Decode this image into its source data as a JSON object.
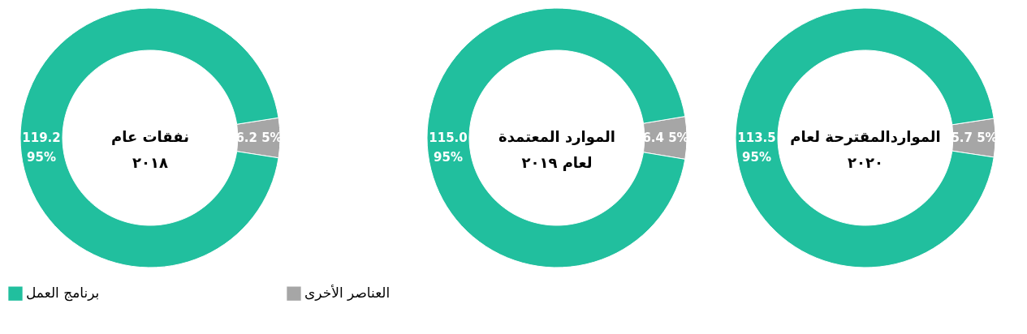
{
  "chart_data": [
    {
      "type": "donut",
      "title": "نفقات عام\n٢٠١٨",
      "categories": [
        "برنامج العمل",
        "العناصر الأخرى"
      ],
      "values": [
        119.2,
        6.2
      ],
      "colors": [
        "#21bf9e",
        "#a6a6a6"
      ],
      "value_labels": [
        "119.2\n95%",
        "6.2  5%"
      ],
      "legend": "bottom"
    },
    {
      "type": "donut",
      "title": "الموارد المعتمدة\nلعام ٢٠١٩",
      "values": [
        115.0,
        6.4
      ],
      "colors": [
        "#21bf9e",
        "#a6a6a6"
      ],
      "value_labels": [
        "115.0\n95%",
        "6.4  5%"
      ]
    },
    {
      "type": "donut",
      "title": "المواردالمقترحة لعام\n٢٠٢٠",
      "values": [
        113.5,
        5.7
      ],
      "colors": [
        "#21bf9e",
        "#a6a6a6"
      ],
      "value_labels": [
        "113.5\n95%",
        "5.7  5%"
      ]
    }
  ]
}
